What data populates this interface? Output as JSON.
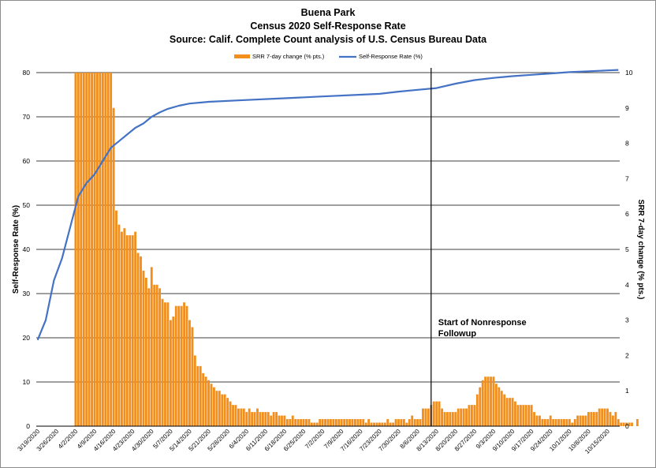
{
  "chart_data": {
    "type": "bar+line",
    "title": "Buena Park",
    "subtitle": "Census 2020 Self-Response Rate",
    "source": "Source: Calif. Complete Count analysis of U.S. Census Bureau Data",
    "ylabel_left": "Self-Response Rate (%)",
    "ylabel_right": "SRR 7-day change (% pts.)",
    "ylim_left": [
      0,
      80
    ],
    "ylim_right": [
      0,
      10
    ],
    "yticks_left": [
      "0",
      "10",
      "20",
      "30",
      "40",
      "50",
      "60",
      "70",
      "80"
    ],
    "yticks_right": [
      "0",
      "1",
      "2",
      "3",
      "4",
      "5",
      "6",
      "7",
      "8",
      "9",
      "10"
    ],
    "grid": true,
    "legend_position": "top",
    "x_start": "2020-03-19",
    "x_end": "2020-10-19",
    "xtick_labels": [
      "3/19/2020",
      "3/26/2020",
      "4/2/2020",
      "4/9/2020",
      "4/16/2020",
      "4/23/2020",
      "4/30/2020",
      "5/7/2020",
      "5/14/2020",
      "5/21/2020",
      "5/28/2020",
      "6/4/2020",
      "6/11/2020",
      "6/18/2020",
      "6/25/2020",
      "7/2/2020",
      "7/9/2020",
      "7/16/2020",
      "7/23/2020",
      "7/30/2020",
      "8/6/2020",
      "8/13/2020",
      "8/20/2020",
      "8/27/2020",
      "9/3/2020",
      "9/10/2020",
      "9/17/2020",
      "9/24/2020",
      "10/1/2020",
      "10/8/2020",
      "10/15/2020"
    ],
    "series": [
      {
        "name": "SRR 7-day change (% pts.)",
        "axis": "right",
        "kind": "bar",
        "color": "#F28E1C",
        "values": [
          0,
          0,
          0,
          0,
          0,
          0,
          0,
          0,
          0,
          0,
          0,
          0,
          0,
          0,
          10,
          10,
          10,
          10,
          10,
          10,
          10,
          10,
          10,
          10,
          10,
          10,
          10,
          10,
          9,
          6.1,
          5.7,
          5.5,
          5.6,
          5.4,
          5.4,
          5.4,
          5.5,
          4.9,
          4.8,
          4.4,
          4.2,
          3.9,
          4.5,
          4.0,
          4.0,
          3.9,
          3.6,
          3.5,
          3.5,
          3.0,
          3.1,
          3.4,
          3.4,
          3.4,
          3.5,
          3.4,
          3.0,
          2.8,
          2.0,
          1.7,
          1.7,
          1.5,
          1.4,
          1.3,
          1.2,
          1.1,
          1.0,
          1.0,
          0.9,
          0.9,
          0.8,
          0.7,
          0.6,
          0.6,
          0.5,
          0.5,
          0.5,
          0.4,
          0.5,
          0.4,
          0.4,
          0.5,
          0.4,
          0.4,
          0.4,
          0.4,
          0.3,
          0.4,
          0.4,
          0.3,
          0.3,
          0.3,
          0.2,
          0.2,
          0.3,
          0.2,
          0.2,
          0.2,
          0.2,
          0.2,
          0.2,
          0.1,
          0.1,
          0.1,
          0.2,
          0.2,
          0.2,
          0.2,
          0.2,
          0.2,
          0.2,
          0.2,
          0.2,
          0.2,
          0.2,
          0.2,
          0.2,
          0.2,
          0.2,
          0.2,
          0.2,
          0.1,
          0.2,
          0.1,
          0.1,
          0.1,
          0.1,
          0.1,
          0.1,
          0.2,
          0.1,
          0.1,
          0.2,
          0.2,
          0.2,
          0.2,
          0.1,
          0.2,
          0.3,
          0.2,
          0.2,
          0.2,
          0.5,
          0.5,
          0.5,
          0.6,
          0.7,
          0.7,
          0.7,
          0.5,
          0.4,
          0.4,
          0.4,
          0.4,
          0.4,
          0.5,
          0.5,
          0.5,
          0.5,
          0.6,
          0.6,
          0.6,
          0.9,
          1.1,
          1.3,
          1.4,
          1.4,
          1.4,
          1.4,
          1.2,
          1.1,
          1.0,
          0.9,
          0.8,
          0.8,
          0.8,
          0.7,
          0.6,
          0.6,
          0.6,
          0.6,
          0.6,
          0.6,
          0.4,
          0.3,
          0.3,
          0.2,
          0.2,
          0.2,
          0.3,
          0.2,
          0.2,
          0.2,
          0.2,
          0.2,
          0.2,
          0.2,
          0.1,
          0.2,
          0.3,
          0.3,
          0.3,
          0.3,
          0.4,
          0.4,
          0.4,
          0.4,
          0.5,
          0.5,
          0.5,
          0.5,
          0.4,
          0.3,
          0.4,
          0.2,
          0.1,
          0.1,
          0.1,
          0.1,
          0.1,
          0,
          0.2
        ]
      },
      {
        "name": "Self-Response Rate (%)",
        "axis": "left",
        "kind": "line",
        "color": "#4472C4",
        "points": [
          [
            "2020-03-19",
            19.5
          ],
          [
            "2020-03-22",
            24
          ],
          [
            "2020-03-25",
            33
          ],
          [
            "2020-03-28",
            38
          ],
          [
            "2020-03-31",
            45
          ],
          [
            "2020-04-03",
            52
          ],
          [
            "2020-04-06",
            55
          ],
          [
            "2020-04-09",
            57
          ],
          [
            "2020-04-12",
            60
          ],
          [
            "2020-04-15",
            63
          ],
          [
            "2020-04-18",
            64.5
          ],
          [
            "2020-04-21",
            66
          ],
          [
            "2020-04-24",
            67.5
          ],
          [
            "2020-04-27",
            68.5
          ],
          [
            "2020-04-30",
            70
          ],
          [
            "2020-05-03",
            71
          ],
          [
            "2020-05-06",
            71.8
          ],
          [
            "2020-05-10",
            72.5
          ],
          [
            "2020-05-14",
            73
          ],
          [
            "2020-05-21",
            73.4
          ],
          [
            "2020-06-04",
            73.8
          ],
          [
            "2020-06-18",
            74.2
          ],
          [
            "2020-07-02",
            74.6
          ],
          [
            "2020-07-16",
            75.0
          ],
          [
            "2020-07-23",
            75.2
          ],
          [
            "2020-07-30",
            75.7
          ],
          [
            "2020-08-06",
            76.1
          ],
          [
            "2020-08-13",
            76.5
          ],
          [
            "2020-08-20",
            77.5
          ],
          [
            "2020-08-27",
            78.3
          ],
          [
            "2020-09-03",
            78.8
          ],
          [
            "2020-09-10",
            79.2
          ],
          [
            "2020-09-17",
            79.5
          ],
          [
            "2020-09-24",
            79.8
          ],
          [
            "2020-10-01",
            80.1
          ],
          [
            "2020-10-08",
            80.3
          ],
          [
            "2020-10-15",
            80.5
          ],
          [
            "2020-10-19",
            80.6
          ]
        ]
      }
    ],
    "annotations": [
      {
        "date": "2020-08-11",
        "text_lines": [
          "Start of Nonresponse",
          "Followup"
        ]
      }
    ]
  }
}
